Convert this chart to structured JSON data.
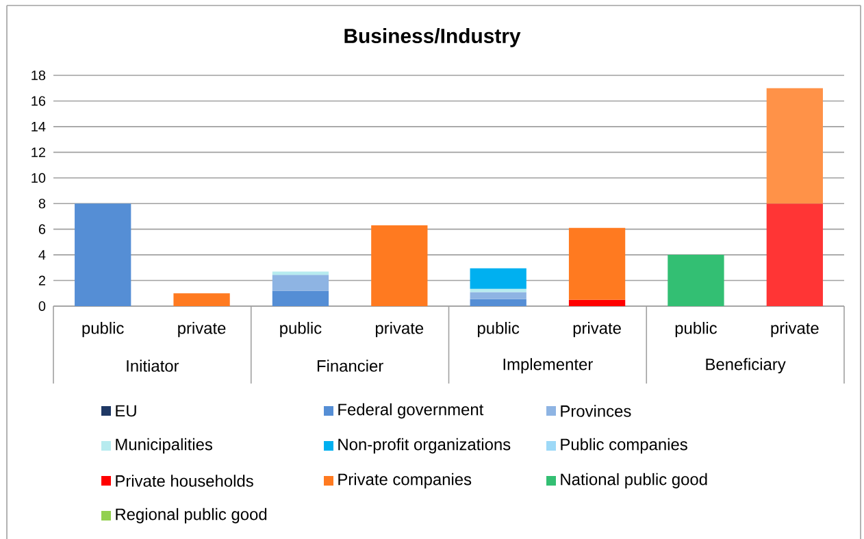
{
  "chart_data": {
    "type": "bar",
    "title": "Business/Industry",
    "stacked": true,
    "categories": [
      "public",
      "private",
      "public",
      "private",
      "public",
      "private",
      "public",
      "private"
    ],
    "annotations": [
      "Initiator",
      "Financier",
      "Implementer",
      "Beneficiary"
    ],
    "series": [
      {
        "name": "EU",
        "color": "#1f3864",
        "values": [
          null,
          null,
          null,
          null,
          null,
          null,
          null,
          null
        ]
      },
      {
        "name": "Federal government",
        "color": "#558ed5",
        "values": [
          8,
          null,
          1.2,
          null,
          0.55,
          null,
          null,
          null
        ]
      },
      {
        "name": "Provinces",
        "color": "#8eb4e3",
        "values": [
          null,
          null,
          1.25,
          null,
          0.55,
          null,
          null,
          null
        ]
      },
      {
        "name": "Municipalities",
        "color": "#b7ebef",
        "values": [
          null,
          null,
          0.25,
          null,
          0.25,
          null,
          null,
          null
        ]
      },
      {
        "name": "Non-profit organizations",
        "color": "#00b0f0",
        "values": [
          null,
          null,
          null,
          null,
          1.6,
          null,
          null,
          null
        ]
      },
      {
        "name": "Public companies",
        "color": "#9dd9f7",
        "values": [
          null,
          null,
          null,
          null,
          null,
          null,
          null,
          null
        ]
      },
      {
        "name": "Private households",
        "color": "#ff0000",
        "colors": [
          "#ff0000",
          "#ff0000",
          "#ff0000",
          "#ff0000",
          "#ff0000",
          "#ff0000",
          "#ff0000",
          "#ff3535"
        ],
        "values": [
          null,
          null,
          null,
          null,
          null,
          0.5,
          null,
          8
        ]
      },
      {
        "name": "Private companies",
        "color": "#ff7a20",
        "colors": [
          "#ff7a20",
          "#ff7a20",
          "#ff7a20",
          "#ff7a20",
          "#ff7a20",
          "#ff7a20",
          "#ff7a20",
          "#ff9248"
        ],
        "values": [
          null,
          1,
          null,
          6.3,
          null,
          5.6,
          null,
          9
        ]
      },
      {
        "name": "National public good",
        "color": "#33bf73",
        "values": [
          null,
          null,
          null,
          null,
          null,
          null,
          4,
          null
        ]
      },
      {
        "name": "Regional public good",
        "color": "#92d050",
        "values": [
          null,
          null,
          null,
          null,
          null,
          null,
          null,
          null
        ]
      }
    ],
    "ylim": [
      0,
      18
    ],
    "yticks": [
      0,
      2,
      4,
      6,
      8,
      10,
      12,
      14,
      16,
      18
    ],
    "grid": "y",
    "legend": "bottom"
  }
}
